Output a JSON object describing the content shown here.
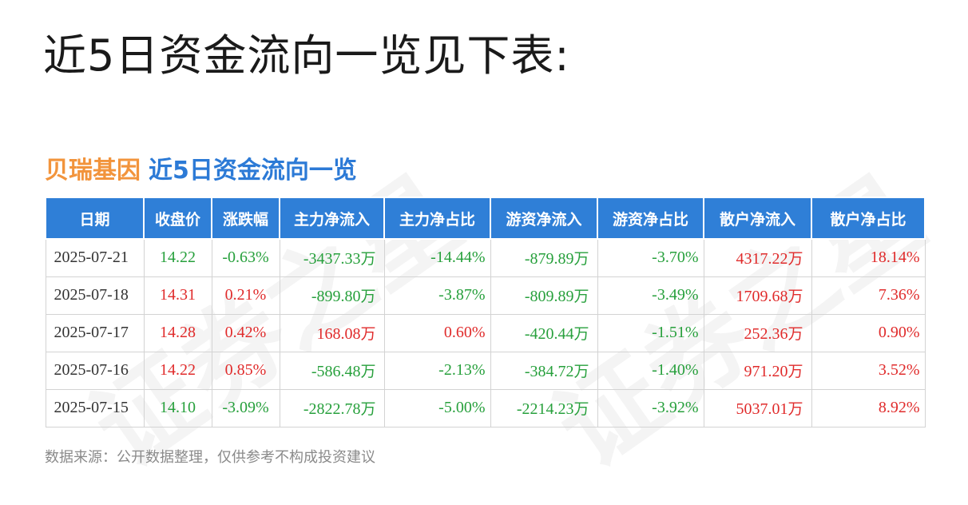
{
  "headline": "近5日资金流向一览见下表:",
  "card": {
    "stock_name": "贝瑞基因",
    "subtitle": "近5日资金流向一览"
  },
  "watermark": "证券之星",
  "colors": {
    "header_bg": "#2f7fd7",
    "up": "#e02b2b",
    "down": "#27a03c",
    "stock_name": "#f2943c",
    "subtitle": "#2c7ad6"
  },
  "table": {
    "headers": [
      "日期",
      "收盘价",
      "涨跌幅",
      "主力净流入",
      "主力净占比",
      "游资净流入",
      "游资净占比",
      "散户净流入",
      "散户净占比"
    ],
    "rows": [
      {
        "date": "2025-07-21",
        "close": "14.22",
        "change": "-0.63%",
        "main_in": "-3437.33",
        "main_pct": "-14.44%",
        "hot_in": "-879.89",
        "hot_pct": "-3.70%",
        "retail_in": "4317.22",
        "retail_pct": "18.14%",
        "close_dir": "down",
        "change_dir": "down",
        "main_dir": "down",
        "hot_dir": "down",
        "retail_dir": "up"
      },
      {
        "date": "2025-07-18",
        "close": "14.31",
        "change": "0.21%",
        "main_in": "-899.80",
        "main_pct": "-3.87%",
        "hot_in": "-809.89",
        "hot_pct": "-3.49%",
        "retail_in": "1709.68",
        "retail_pct": "7.36%",
        "close_dir": "up",
        "change_dir": "up",
        "main_dir": "down",
        "hot_dir": "down",
        "retail_dir": "up"
      },
      {
        "date": "2025-07-17",
        "close": "14.28",
        "change": "0.42%",
        "main_in": "168.08",
        "main_pct": "0.60%",
        "hot_in": "-420.44",
        "hot_pct": "-1.51%",
        "retail_in": "252.36",
        "retail_pct": "0.90%",
        "close_dir": "up",
        "change_dir": "up",
        "main_dir": "up",
        "hot_dir": "down",
        "retail_dir": "up"
      },
      {
        "date": "2025-07-16",
        "close": "14.22",
        "change": "0.85%",
        "main_in": "-586.48",
        "main_pct": "-2.13%",
        "hot_in": "-384.72",
        "hot_pct": "-1.40%",
        "retail_in": "971.20",
        "retail_pct": "3.52%",
        "close_dir": "up",
        "change_dir": "up",
        "main_dir": "down",
        "hot_dir": "down",
        "retail_dir": "up"
      },
      {
        "date": "2025-07-15",
        "close": "14.10",
        "change": "-3.09%",
        "main_in": "-2822.78",
        "main_pct": "-5.00%",
        "hot_in": "-2214.23",
        "hot_pct": "-3.92%",
        "retail_in": "5037.01",
        "retail_pct": "8.92%",
        "close_dir": "down",
        "change_dir": "down",
        "main_dir": "down",
        "hot_dir": "down",
        "retail_dir": "up"
      }
    ],
    "unit": "万"
  },
  "source": "数据来源：公开数据整理，仅供参考不构成投资建议"
}
